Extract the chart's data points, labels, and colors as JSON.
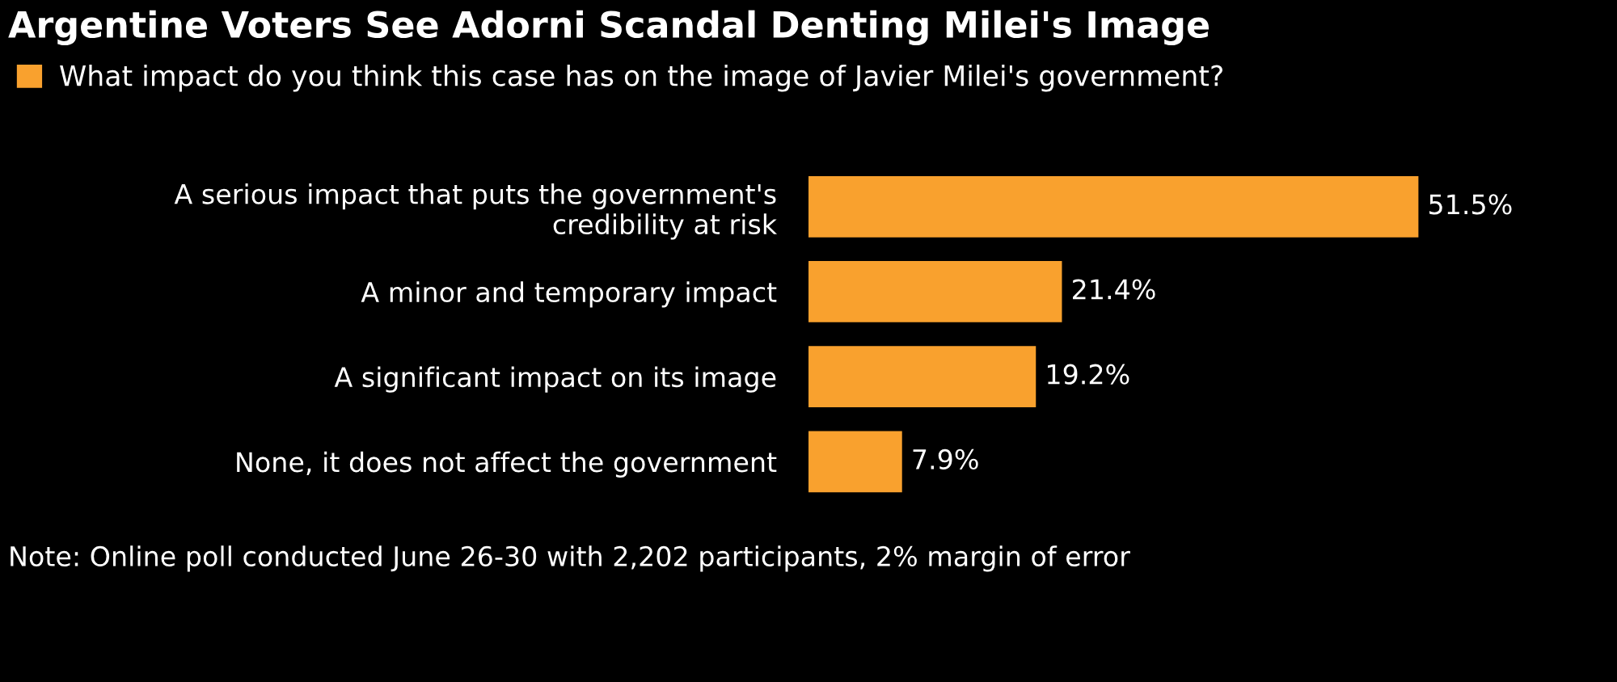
{
  "chart_data": {
    "type": "bar",
    "orientation": "horizontal",
    "title": "Argentine Voters See Adorni Scandal Denting Milei's Image",
    "categories": [
      "A serious impact that puts the government's\ncredibility at risk",
      "A minor and temporary impact",
      "A significant impact on its image",
      "None, it does not affect the government"
    ],
    "series": [
      {
        "name": "What impact do you think this case has on the image of Javier Milei's government?",
        "color": "#f9a12e",
        "values": [
          51.5,
          21.4,
          19.2,
          7.9
        ],
        "value_labels": [
          "51.5%",
          "21.4%",
          "19.2%",
          "7.9%"
        ]
      }
    ],
    "legend": "top left",
    "grid": false,
    "annotations": [
      "Note: Online poll conducted June 26-30 with 2,202 participants, 2% margin of error"
    ]
  }
}
